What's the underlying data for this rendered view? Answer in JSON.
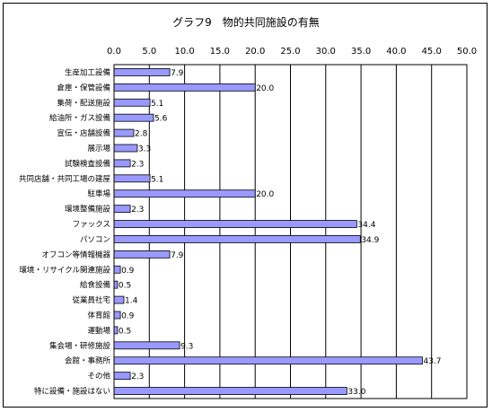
{
  "chart_data": {
    "type": "bar",
    "orientation": "horizontal",
    "title": "グラフ9　物的共同施設の有無",
    "xlim": [
      0,
      50
    ],
    "xticks": [
      "0.0",
      "5.0",
      "10.0",
      "15.0",
      "20.0",
      "25.0",
      "30.0",
      "35.0",
      "40.0",
      "45.0",
      "50.0"
    ],
    "grid": true,
    "bar_color": "#9999ff",
    "categories": [
      "生産加工設備",
      "倉庫・保管設備",
      "集荷・配送施設",
      "給油所・ガス設備",
      "宣伝・店舗設備",
      "展示場",
      "試験検査設備",
      "共同店舗・共同工場の建屋",
      "駐車場",
      "環境整備施設",
      "ファックス",
      "パソコン",
      "オフコン等情報機器",
      "環境・リサイクル関連施設",
      "給食設備",
      "従業員社宅",
      "体育館",
      "運動場",
      "集会場・研修施設",
      "会館・事務所",
      "その他",
      "特に設備・施設はない"
    ],
    "values": [
      7.9,
      20.0,
      5.1,
      5.6,
      2.8,
      3.3,
      2.3,
      5.1,
      20.0,
      2.3,
      34.4,
      34.9,
      7.9,
      0.9,
      0.5,
      1.4,
      0.9,
      0.5,
      9.3,
      43.7,
      2.3,
      33.0
    ],
    "labels": [
      "7.9",
      "20.0",
      "5.1",
      "5.6",
      "2.8",
      "3.3",
      "2.3",
      "5.1",
      "20.0",
      "2.3",
      "34.4",
      "34.9",
      "7.9",
      "0.9",
      "0.5",
      "1.4",
      "0.9",
      "0.5",
      "9.3",
      "43.7",
      "2.3",
      "33.0"
    ]
  }
}
